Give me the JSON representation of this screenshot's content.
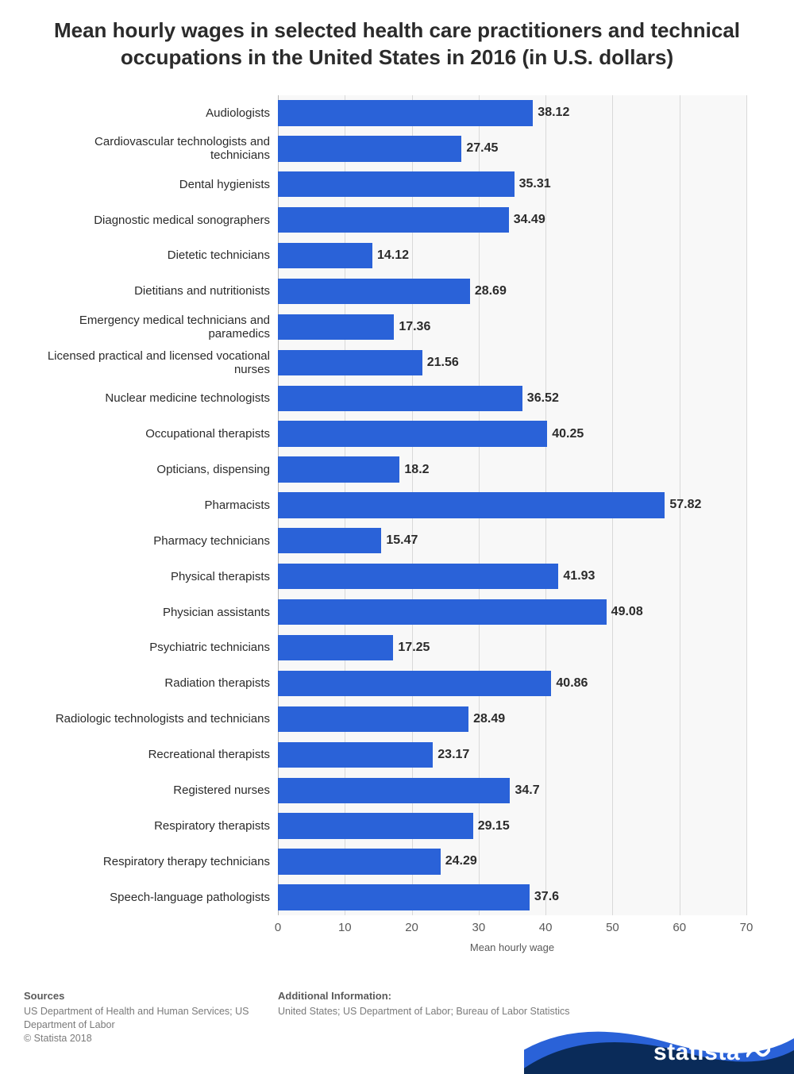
{
  "title": "Mean hourly wages in selected health care practitioners and technical occupations in the United States in 2016 (in U.S. dollars)",
  "chart": {
    "type": "bar",
    "orientation": "horizontal",
    "x_axis_title": "Mean hourly wage",
    "xlim": [
      0,
      70
    ],
    "xtick_step": 10,
    "xticks": [
      0,
      10,
      20,
      30,
      40,
      50,
      60,
      70
    ],
    "bar_color": "#2a62d8",
    "plot_bg": "#f8f8f8",
    "grid_color": "#d9d9d9",
    "axis_line_color": "#b5b5b5",
    "value_font_weight": 700,
    "value_font_size": 16,
    "category_font_size": 15,
    "tick_font_size": 15,
    "title_font_size": 26,
    "title_color": "#2b2b2b",
    "categories": [
      "Audiologists",
      "Cardiovascular technologists and technicians",
      "Dental hygienists",
      "Diagnostic medical sonographers",
      "Dietetic technicians",
      "Dietitians and nutritionists",
      "Emergency medical technicians and paramedics",
      "Licensed practical and licensed vocational nurses",
      "Nuclear medicine technologists",
      "Occupational therapists",
      "Opticians, dispensing",
      "Pharmacists",
      "Pharmacy technicians",
      "Physical therapists",
      "Physician assistants",
      "Psychiatric technicians",
      "Radiation therapists",
      "Radiologic technologists and technicians",
      "Recreational therapists",
      "Registered nurses",
      "Respiratory therapists",
      "Respiratory therapy technicians",
      "Speech-language pathologists"
    ],
    "values": [
      38.12,
      27.45,
      35.31,
      34.49,
      14.12,
      28.69,
      17.36,
      21.56,
      36.52,
      40.25,
      18.2,
      57.82,
      15.47,
      41.93,
      49.08,
      17.25,
      40.86,
      28.49,
      23.17,
      34.7,
      29.15,
      24.29,
      37.6
    ]
  },
  "footer": {
    "sources_heading": "Sources",
    "sources_text": "US Department of Health and Human Services; US Department of Labor",
    "copyright": "© Statista 2018",
    "additional_heading": "Additional Information:",
    "additional_text": "United States; US Department of Labor; Bureau of Labor Statistics"
  },
  "brand": {
    "name": "statista",
    "bg_color": "#0a2b59",
    "curve_color": "#2a62d8",
    "text_color": "#ffffff"
  }
}
